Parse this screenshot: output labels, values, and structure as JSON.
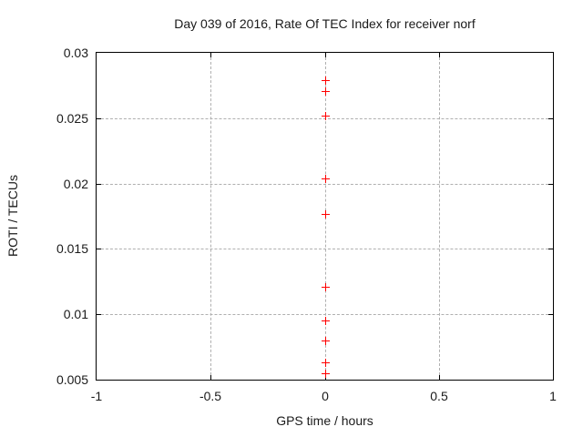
{
  "window": {
    "background": "#ffffff"
  },
  "chart_data": {
    "type": "scatter",
    "title": "Day 039 of 2016, Rate Of TEC Index for receiver norf",
    "xlabel": "GPS time / hours",
    "ylabel": "ROTI / TECUs",
    "xlim": [
      -1,
      1
    ],
    "ylim": [
      0.005,
      0.03
    ],
    "xticks": [
      {
        "value": -1,
        "label": "-1"
      },
      {
        "value": -0.5,
        "label": "-0.5"
      },
      {
        "value": 0,
        "label": "0"
      },
      {
        "value": 0.5,
        "label": "0.5"
      },
      {
        "value": 1,
        "label": "1"
      }
    ],
    "yticks": [
      {
        "value": 0.005,
        "label": "0.005"
      },
      {
        "value": 0.01,
        "label": "0.01"
      },
      {
        "value": 0.015,
        "label": "0.015"
      },
      {
        "value": 0.02,
        "label": "0.02"
      },
      {
        "value": 0.025,
        "label": "0.025"
      },
      {
        "value": 0.03,
        "label": "0.03"
      }
    ],
    "grid": true,
    "legend_position": "none",
    "series": [
      {
        "name": "ROTI",
        "marker": "plus",
        "color": "#ff0000",
        "points": [
          {
            "x": 0,
            "y": 0.0279
          },
          {
            "x": 0,
            "y": 0.0271
          },
          {
            "x": 0,
            "y": 0.0252
          },
          {
            "x": 0,
            "y": 0.0204
          },
          {
            "x": 0,
            "y": 0.0177
          },
          {
            "x": 0,
            "y": 0.0121
          },
          {
            "x": 0,
            "y": 0.0095
          },
          {
            "x": 0,
            "y": 0.008
          },
          {
            "x": 0,
            "y": 0.0063
          },
          {
            "x": 0,
            "y": 0.0055
          }
        ]
      }
    ],
    "colors": {
      "border": "#000000",
      "grid": "#b0b0b0",
      "text": "#1a1a1a",
      "marker": "#ff0000"
    }
  }
}
